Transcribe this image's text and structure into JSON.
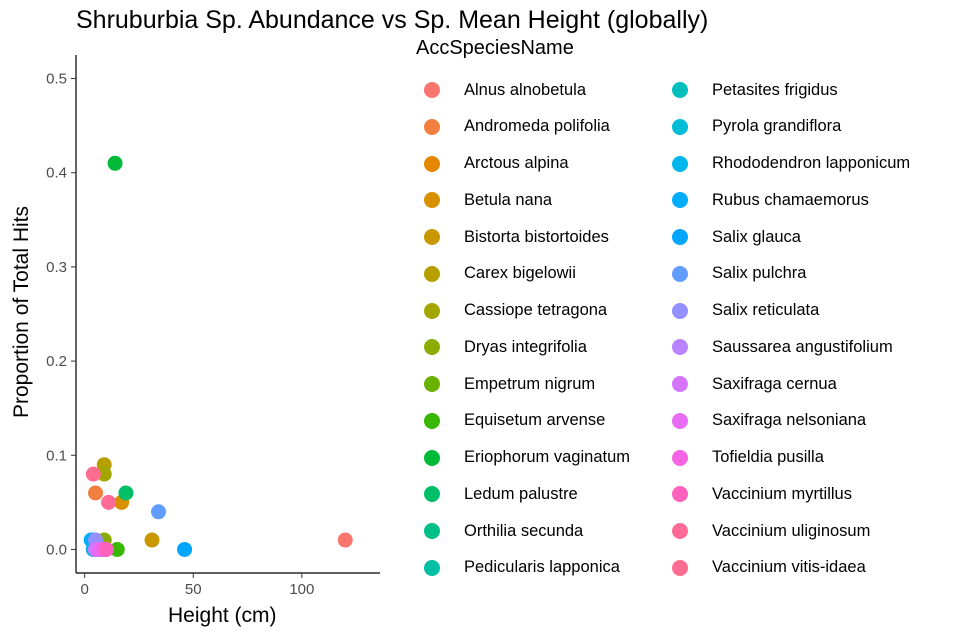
{
  "chart_data": {
    "type": "scatter",
    "title": "Shruburbia Sp. Abundance vs Sp. Mean Height (globally)",
    "xlabel": "Height (cm)",
    "ylabel": "Proportion of Total Hits",
    "xlim": [
      -4,
      136
    ],
    "ylim": [
      -0.025,
      0.525
    ],
    "x_ticks": [
      0,
      50,
      100
    ],
    "y_ticks": [
      0.0,
      0.1,
      0.2,
      0.3,
      0.4,
      0.5
    ],
    "y_tick_labels": [
      "0.0",
      "0.1",
      "0.2",
      "0.3",
      "0.4",
      "0.5"
    ],
    "grid": false,
    "legend_title": "AccSpeciesName",
    "legend_position": "right",
    "series": [
      {
        "name": "Alnus alnobetula",
        "color": "#F8766D",
        "x": 120,
        "y": 0.01
      },
      {
        "name": "Andromeda polifolia",
        "color": "#F07F40",
        "x": 5,
        "y": 0.06
      },
      {
        "name": "Arctous alpina",
        "color": "#E58700",
        "x": 8,
        "y": 0.0
      },
      {
        "name": "Betula nana",
        "color": "#D89000",
        "x": 17,
        "y": 0.05
      },
      {
        "name": "Bistorta bistortoides",
        "color": "#C99800",
        "x": 31,
        "y": 0.01
      },
      {
        "name": "Carex bigelowii",
        "color": "#B79F00",
        "x": 9,
        "y": 0.09
      },
      {
        "name": "Cassiope tetragona",
        "color": "#A3A500",
        "x": 9,
        "y": 0.08
      },
      {
        "name": "Dryas integrifolia",
        "color": "#8BAB00",
        "x": 9,
        "y": 0.01
      },
      {
        "name": "Empetrum nigrum",
        "color": "#6BB100",
        "x": 4,
        "y": 0.0
      },
      {
        "name": "Equisetum arvense",
        "color": "#39B600",
        "x": 15,
        "y": 0.0
      },
      {
        "name": "Eriophorum vaginatum",
        "color": "#00BA38",
        "x": 14,
        "y": 0.41
      },
      {
        "name": "Ledum palustre",
        "color": "#00BE67",
        "x": 19,
        "y": 0.06
      },
      {
        "name": "Orthilia secunda",
        "color": "#00C087",
        "x": 7,
        "y": 0.0
      },
      {
        "name": "Pedicularis lapponica",
        "color": "#00C0A3",
        "x": 6,
        "y": 0.0
      },
      {
        "name": "Petasites frigidus",
        "color": "#00BFBC",
        "x": 5,
        "y": 0.0
      },
      {
        "name": "Pyrola grandiflora",
        "color": "#00BCD6",
        "x": 4,
        "y": 0.01
      },
      {
        "name": "Rhododendron lapponicum",
        "color": "#00B6EB",
        "x": 4,
        "y": 0.0
      },
      {
        "name": "Rubus chamaemorus",
        "color": "#00ADFA",
        "x": 3,
        "y": 0.01
      },
      {
        "name": "Salix glauca",
        "color": "#00A5FF",
        "x": 46,
        "y": 0.0
      },
      {
        "name": "Salix pulchra",
        "color": "#619CFF",
        "x": 34,
        "y": 0.04
      },
      {
        "name": "Salix reticulata",
        "color": "#9590FF",
        "x": 5,
        "y": 0.01
      },
      {
        "name": "Saussarea angustifolium",
        "color": "#B983FF",
        "x": 6,
        "y": 0.0
      },
      {
        "name": "Saxifraga cernua",
        "color": "#D575FE",
        "x": 5,
        "y": 0.0
      },
      {
        "name": "Saxifraga nelsoniana",
        "color": "#E76BF3",
        "x": 7,
        "y": 0.0
      },
      {
        "name": "Tofieldia pusilla",
        "color": "#F564E3",
        "x": 9,
        "y": 0.0
      },
      {
        "name": "Vaccinium myrtillus",
        "color": "#FF62BC",
        "x": 10,
        "y": 0.0
      },
      {
        "name": "Vaccinium uliginosum",
        "color": "#FF6B96",
        "x": 11,
        "y": 0.05
      },
      {
        "name": "Vaccinium vitis-idaea",
        "color": "#FF6C91",
        "x": 4,
        "y": 0.08
      }
    ]
  }
}
